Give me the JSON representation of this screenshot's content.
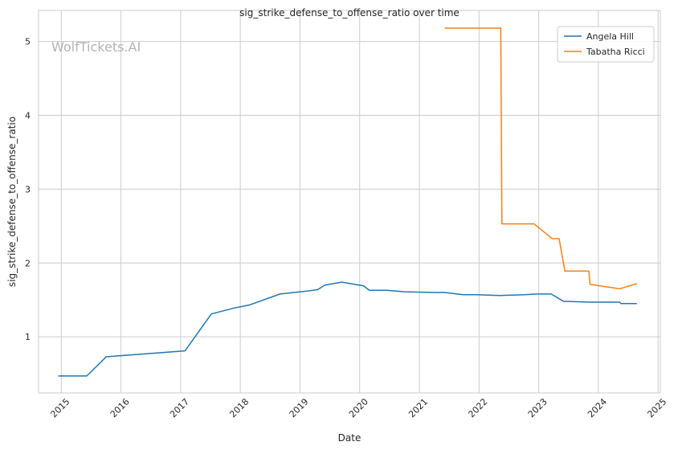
{
  "watermark": "WolfTickets.AI",
  "colors": {
    "background": "#ffffff",
    "grid": "#cccccc",
    "axis": "#cccccc",
    "text": "#262626",
    "watermark": "#b3b3b3",
    "series": [
      "#1f77b4",
      "#ff7f0e"
    ]
  },
  "chart_data": {
    "type": "line",
    "title": "sig_strike_defense_to_offense_ratio over time",
    "xlabel": "Date",
    "ylabel": "sig_strike_defense_to_offense_ratio",
    "x_axis_type": "date",
    "xlim": [
      "2014-08-15",
      "2025-01-15"
    ],
    "ylim": [
      0.24,
      5.42
    ],
    "x_ticks": [
      "2015",
      "2016",
      "2017",
      "2018",
      "2019",
      "2020",
      "2021",
      "2022",
      "2023",
      "2024",
      "2025"
    ],
    "x_tick_rotation": 45,
    "y_ticks": [
      1,
      2,
      3,
      4,
      5
    ],
    "grid": true,
    "legend": "top-right",
    "series": [
      {
        "name": "Angela Hill",
        "color": "#1f77b4",
        "points": [
          [
            "2014-12-13",
            0.47
          ],
          [
            "2015-06-06",
            0.47
          ],
          [
            "2015-10-03",
            0.73
          ],
          [
            "2017-01-28",
            0.81
          ],
          [
            "2017-07-08",
            1.31
          ],
          [
            "2017-11-25",
            1.39
          ],
          [
            "2018-02-24",
            1.43
          ],
          [
            "2018-09-01",
            1.58
          ],
          [
            "2019-02-17",
            1.62
          ],
          [
            "2019-04-20",
            1.64
          ],
          [
            "2019-06-01",
            1.7
          ],
          [
            "2019-09-14",
            1.74
          ],
          [
            "2020-01-25",
            1.69
          ],
          [
            "2020-02-29",
            1.63
          ],
          [
            "2020-06-13",
            1.63
          ],
          [
            "2020-10-03",
            1.61
          ],
          [
            "2021-04-10",
            1.6
          ],
          [
            "2021-06-05",
            1.6
          ],
          [
            "2021-09-25",
            1.57
          ],
          [
            "2021-12-18",
            1.57
          ],
          [
            "2022-05-07",
            1.56
          ],
          [
            "2022-10-08",
            1.57
          ],
          [
            "2022-12-17",
            1.58
          ],
          [
            "2023-03-18",
            1.58
          ],
          [
            "2023-06-03",
            1.48
          ],
          [
            "2023-11-11",
            1.47
          ],
          [
            "2024-05-11",
            1.47
          ],
          [
            "2024-05-18",
            1.45
          ],
          [
            "2024-08-24",
            1.45
          ]
        ]
      },
      {
        "name": "Tabatha Ricci",
        "color": "#ff7f0e",
        "points": [
          [
            "2021-06-05",
            5.18
          ],
          [
            "2022-05-14",
            5.18
          ],
          [
            "2022-05-21",
            2.53
          ],
          [
            "2022-12-03",
            2.53
          ],
          [
            "2023-03-25",
            2.33
          ],
          [
            "2023-05-06",
            2.33
          ],
          [
            "2023-06-10",
            1.89
          ],
          [
            "2023-11-04",
            1.89
          ],
          [
            "2023-11-11",
            1.71
          ],
          [
            "2024-05-11",
            1.65
          ],
          [
            "2024-08-24",
            1.72
          ]
        ]
      }
    ]
  }
}
